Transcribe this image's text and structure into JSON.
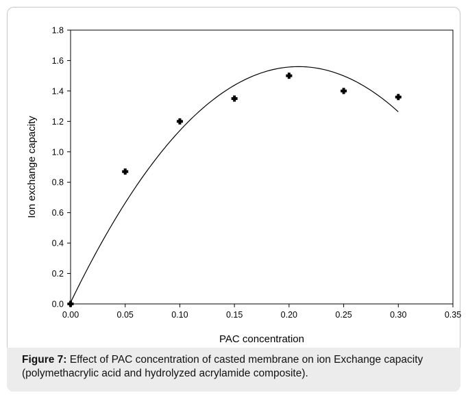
{
  "chart_data": {
    "type": "scatter",
    "xlabel": "PAC concentration",
    "ylabel": "Ion exchange capacity",
    "xlim": [
      0.0,
      0.35
    ],
    "ylim": [
      0.0,
      1.8
    ],
    "x_ticks": [
      "0.00",
      "0.05",
      "0.10",
      "0.15",
      "0.20",
      "0.25",
      "0.30",
      "0.35"
    ],
    "y_ticks": [
      "0.0",
      "0.2",
      "0.4",
      "0.6",
      "0.8",
      "1.0",
      "1.2",
      "1.4",
      "1.6",
      "1.8"
    ],
    "series": [
      {
        "x": [
          0.0,
          0.05,
          0.1,
          0.15,
          0.2,
          0.25,
          0.3
        ],
        "y": [
          0.0,
          0.87,
          1.2,
          1.35,
          1.5,
          1.4,
          1.36
        ]
      }
    ],
    "fit_curve": {
      "type": "quadratic",
      "x_range": [
        0.0,
        0.3
      ],
      "points": [
        {
          "x": 0.0,
          "y": 0.0
        },
        {
          "x": 0.05,
          "y": 0.68
        },
        {
          "x": 0.1,
          "y": 1.14
        },
        {
          "x": 0.15,
          "y": 1.43
        },
        {
          "x": 0.2,
          "y": 1.555
        },
        {
          "x": 0.22,
          "y": 1.555
        },
        {
          "x": 0.25,
          "y": 1.5
        },
        {
          "x": 0.3,
          "y": 1.265
        }
      ]
    },
    "grid": false,
    "legend": "none"
  },
  "caption": {
    "label": "Figure 7:",
    "text": " Effect of PAC concentration of casted membrane on ion Exchange capacity (polymethacrylic acid and hydrolyzed acrylamide composite)."
  }
}
